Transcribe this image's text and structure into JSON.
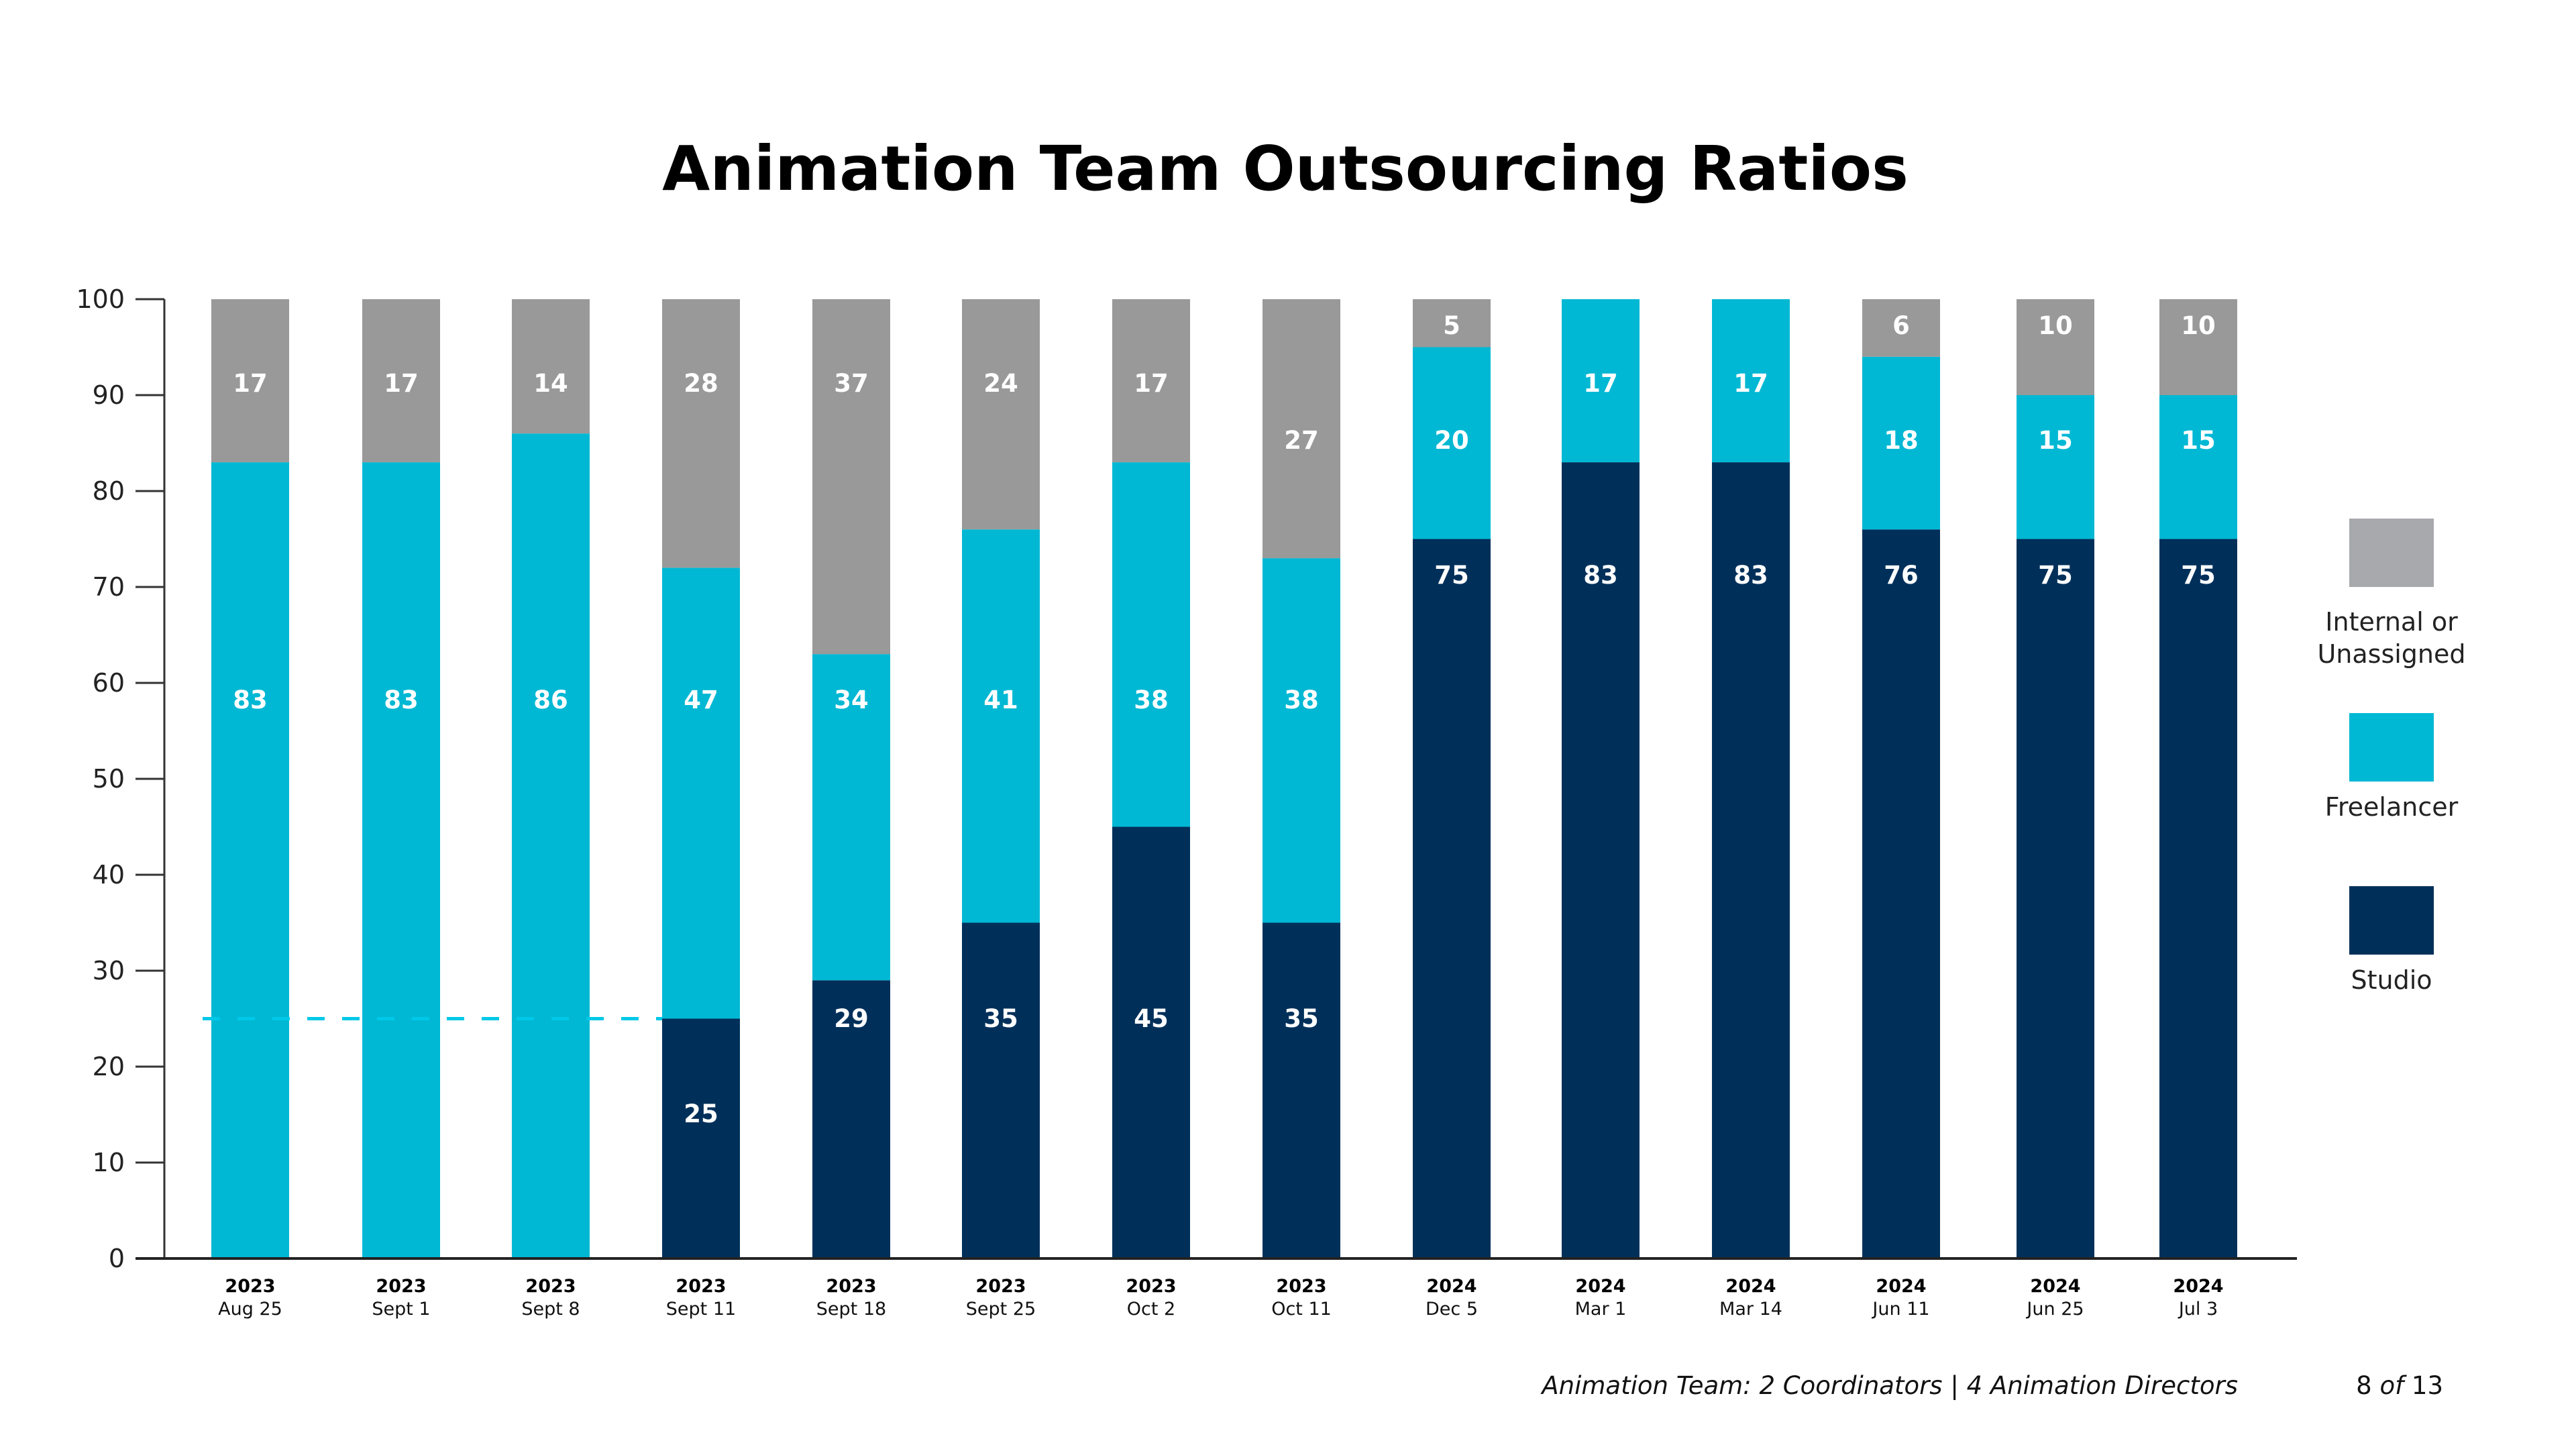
{
  "page": {
    "footer_note": "Animation Team: 2 Coordinators | 4 Animation Directors",
    "page_current": "8",
    "page_of": "of",
    "page_total": "13"
  },
  "chart_data": {
    "type": "bar",
    "stacked": true,
    "title": "Animation Team Outsourcing Ratios",
    "xlabel": "",
    "ylabel": "",
    "ylim": [
      0,
      100
    ],
    "yticks": [
      0,
      10,
      20,
      30,
      40,
      50,
      60,
      70,
      80,
      90,
      100
    ],
    "grid": false,
    "legend_position": "right",
    "categories": [
      {
        "year": "2023",
        "date": "Aug 25"
      },
      {
        "year": "2023",
        "date": "Sept 1"
      },
      {
        "year": "2023",
        "date": "Sept 8"
      },
      {
        "year": "2023",
        "date": "Sept 11"
      },
      {
        "year": "2023",
        "date": "Sept 18"
      },
      {
        "year": "2023",
        "date": "Sept 25"
      },
      {
        "year": "2023",
        "date": "Oct 2"
      },
      {
        "year": "2023",
        "date": "Oct 11"
      },
      {
        "year": "2024",
        "date": "Dec 5"
      },
      {
        "year": "2024",
        "date": "Mar 1"
      },
      {
        "year": "2024",
        "date": "Mar 14"
      },
      {
        "year": "2024",
        "date": "Jun 11"
      },
      {
        "year": "2024",
        "date": "Jun 25"
      },
      {
        "year": "2024",
        "date": "Jul 3"
      }
    ],
    "series": [
      {
        "name": "Studio",
        "color": "#00305a",
        "values": [
          0,
          0,
          0,
          25,
          29,
          35,
          45,
          35,
          75,
          83,
          83,
          76,
          75,
          75
        ],
        "labels": [
          "",
          "",
          "",
          "25",
          "29",
          "35",
          "45",
          "35",
          "75",
          "83",
          "83",
          "76",
          "75",
          "75"
        ]
      },
      {
        "name": "Freelancer",
        "color": "#00b8d4",
        "values": [
          83,
          83,
          86,
          47,
          34,
          41,
          38,
          38,
          20,
          17,
          17,
          18,
          15,
          15
        ],
        "labels": [
          "83",
          "83",
          "86",
          "47",
          "34",
          "41",
          "38",
          "38",
          "20",
          "17",
          "17",
          "18",
          "15",
          "15"
        ]
      },
      {
        "name": "Internal or Unassigned",
        "color": "#999999",
        "values": [
          17,
          17,
          14,
          28,
          37,
          24,
          17,
          27,
          5,
          0,
          0,
          6,
          10,
          10
        ],
        "labels": [
          "17",
          "17",
          "14",
          "28",
          "37",
          "24",
          "17",
          "27",
          "5",
          "",
          "",
          "6",
          "10",
          "10"
        ]
      }
    ],
    "legend": [
      {
        "label_lines": [
          "Internal or",
          "Unassigned"
        ],
        "color": "#a7a9ac"
      },
      {
        "label_lines": [
          "Freelancer"
        ],
        "color": "#00b8d4"
      },
      {
        "label_lines": [
          "Studio"
        ],
        "color": "#00305a"
      }
    ],
    "reference_line": {
      "value": 25,
      "style": "dashed",
      "color": "#00c8e8",
      "from_category": 0,
      "to_category": 3
    }
  }
}
